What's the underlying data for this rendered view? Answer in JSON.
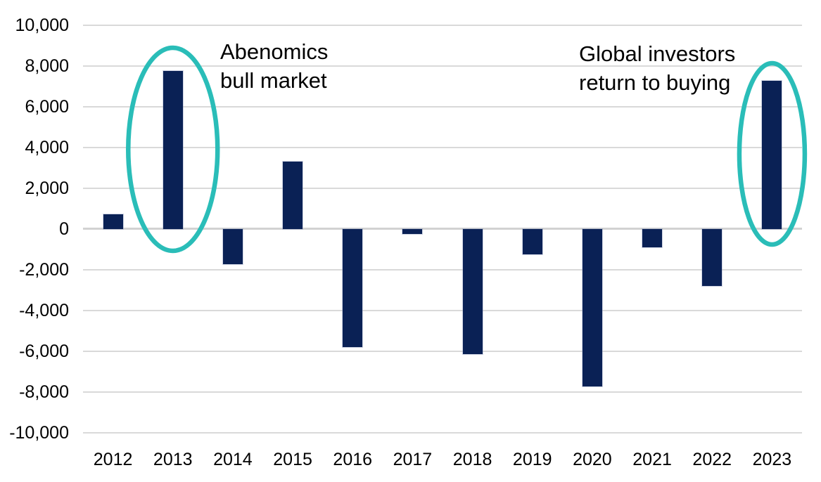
{
  "chart_data": {
    "type": "bar",
    "title": "",
    "xlabel": "",
    "ylabel": "",
    "categories": [
      "2012",
      "2013",
      "2014",
      "2015",
      "2016",
      "2017",
      "2018",
      "2019",
      "2020",
      "2021",
      "2022",
      "2023"
    ],
    "values": [
      700,
      7750,
      -1750,
      3300,
      -5800,
      -250,
      -6150,
      -1250,
      -7750,
      -900,
      -2800,
      7250
    ],
    "ylim": [
      -10000,
      10000
    ],
    "ytick_step": 2000,
    "ytick_labels": [
      "10,000",
      "8,000",
      "6,000",
      "4,000",
      "2,000",
      "0",
      "-2,000",
      "-4,000",
      "-6,000",
      "-8,000",
      "-10,000"
    ],
    "grid": "horizontal",
    "legend": "none",
    "bar_color": "#0A2155",
    "gridline_color": "#D9D9D9",
    "text_color": "#000000",
    "highlight_color": "#2ABDB8",
    "annotations": [
      {
        "line1": "Abenomics",
        "line2": "bull market",
        "target_year": "2013"
      },
      {
        "line1": "Global investors",
        "line2": "return to buying",
        "target_year": "2023"
      }
    ]
  }
}
